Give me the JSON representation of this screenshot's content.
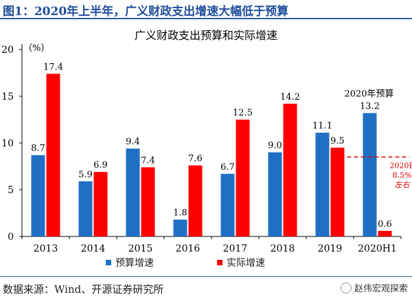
{
  "header": {
    "title": "图1：2020年上半年，广义财政支出增速大幅低于预算"
  },
  "footer": {
    "source": "数据来源：Wind、开源证券研究所",
    "watermark": "赵伟宏观探索"
  },
  "colors": {
    "budget": "#1f6fc5",
    "actual": "#ff0000",
    "reference": "#dd0000",
    "axis": "#000000"
  },
  "chart_data": {
    "type": "bar",
    "title": "广义财政支出预算和实际增速",
    "unit_label": "（%）",
    "categories": [
      "2013",
      "2014",
      "2015",
      "2016",
      "2017",
      "2018",
      "2019",
      "2020H1"
    ],
    "series": [
      {
        "name": "预算增速",
        "values": [
          8.7,
          5.9,
          9.4,
          1.8,
          6.7,
          9.0,
          11.1,
          13.2
        ],
        "labels": [
          "8.7",
          "5.9",
          "9.4",
          "1.8",
          "6.7",
          "9.0",
          "11.1",
          "13.2"
        ]
      },
      {
        "name": "实际增速",
        "values": [
          17.4,
          6.9,
          7.4,
          7.6,
          12.5,
          14.2,
          9.5,
          0.6
        ],
        "labels": [
          "17.4",
          "6.9",
          "7.4",
          "7.6",
          "12.5",
          "14.2",
          "9.5",
          "0.6"
        ]
      }
    ],
    "ylim": [
      0,
      20
    ],
    "yticks": [
      0,
      5,
      10,
      15,
      20
    ],
    "annotations": [
      {
        "text": "2020年预算",
        "category": "2020H1"
      },
      {
        "reference_value": 8.5,
        "lines": [
          "2020E",
          "8.5%",
          "左右"
        ]
      }
    ],
    "legend_position": "bottom"
  }
}
